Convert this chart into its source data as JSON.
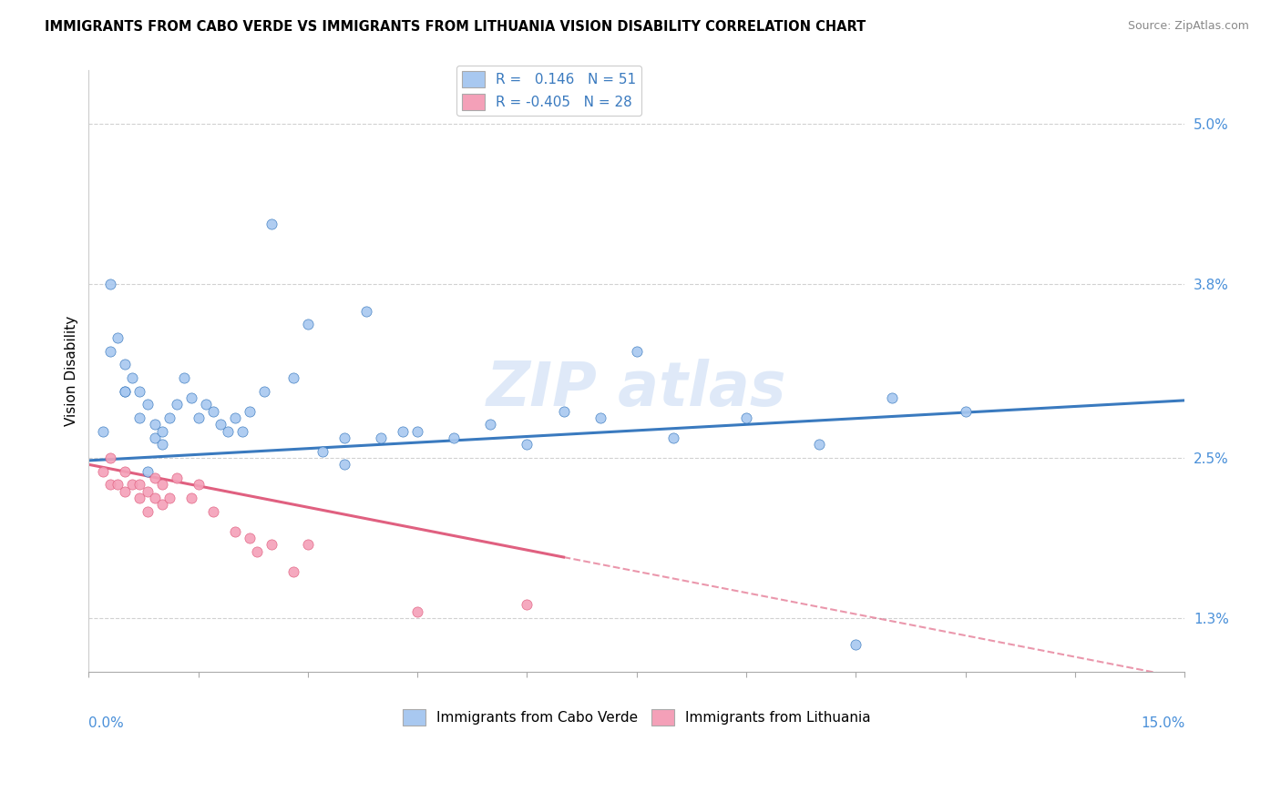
{
  "title": "IMMIGRANTS FROM CABO VERDE VS IMMIGRANTS FROM LITHUANIA VISION DISABILITY CORRELATION CHART",
  "source": "Source: ZipAtlas.com",
  "ylabel": "Vision Disability",
  "yticks": [
    1.3,
    2.5,
    3.8,
    5.0
  ],
  "xlim": [
    0.0,
    15.0
  ],
  "ylim": [
    0.9,
    5.4
  ],
  "blue_R": 0.146,
  "blue_N": 51,
  "pink_R": -0.405,
  "pink_N": 28,
  "blue_color": "#a8c8f0",
  "pink_color": "#f4a0b8",
  "blue_line_color": "#3a7abf",
  "pink_line_color": "#e06080",
  "legend_blue": "Immigrants from Cabo Verde",
  "legend_pink": "Immigrants from Lithuania",
  "blue_dots_x": [
    0.2,
    0.3,
    0.4,
    0.5,
    0.5,
    0.6,
    0.7,
    0.7,
    0.8,
    0.9,
    0.9,
    1.0,
    1.0,
    1.1,
    1.2,
    1.3,
    1.4,
    1.5,
    1.6,
    1.7,
    1.8,
    1.9,
    2.0,
    2.1,
    2.2,
    2.4,
    2.5,
    2.8,
    3.0,
    3.2,
    3.5,
    3.8,
    4.0,
    4.3,
    4.5,
    5.0,
    5.5,
    6.0,
    6.5,
    7.0,
    7.5,
    8.0,
    9.0,
    10.0,
    10.5,
    11.0,
    12.0,
    0.3,
    0.5,
    0.8,
    3.5
  ],
  "blue_dots_y": [
    2.7,
    3.3,
    3.4,
    3.2,
    3.0,
    3.1,
    3.0,
    2.8,
    2.9,
    2.65,
    2.75,
    2.7,
    2.6,
    2.8,
    2.9,
    3.1,
    2.95,
    2.8,
    2.9,
    2.85,
    2.75,
    2.7,
    2.8,
    2.7,
    2.85,
    3.0,
    4.25,
    3.1,
    3.5,
    2.55,
    2.65,
    3.6,
    2.65,
    2.7,
    2.7,
    2.65,
    2.75,
    2.6,
    2.85,
    2.8,
    3.3,
    2.65,
    2.8,
    2.6,
    1.1,
    2.95,
    2.85,
    3.8,
    3.0,
    2.4,
    2.45
  ],
  "pink_dots_x": [
    0.2,
    0.3,
    0.3,
    0.4,
    0.5,
    0.5,
    0.6,
    0.7,
    0.7,
    0.8,
    0.8,
    0.9,
    0.9,
    1.0,
    1.0,
    1.1,
    1.2,
    1.4,
    1.5,
    1.7,
    2.0,
    2.2,
    2.3,
    2.5,
    2.8,
    3.0,
    4.5,
    6.0
  ],
  "pink_dots_y": [
    2.4,
    2.5,
    2.3,
    2.3,
    2.4,
    2.25,
    2.3,
    2.3,
    2.2,
    2.25,
    2.1,
    2.35,
    2.2,
    2.3,
    2.15,
    2.2,
    2.35,
    2.2,
    2.3,
    2.1,
    1.95,
    1.9,
    1.8,
    1.85,
    1.65,
    1.85,
    1.35,
    1.4
  ],
  "blue_trend_x0": 0.0,
  "blue_trend_y0": 2.48,
  "blue_trend_x1": 15.0,
  "blue_trend_y1": 2.93,
  "pink_trend_x0": 0.0,
  "pink_trend_y0": 2.45,
  "pink_trend_x1": 15.0,
  "pink_trend_y1": 0.85,
  "pink_solid_xmax": 6.5
}
